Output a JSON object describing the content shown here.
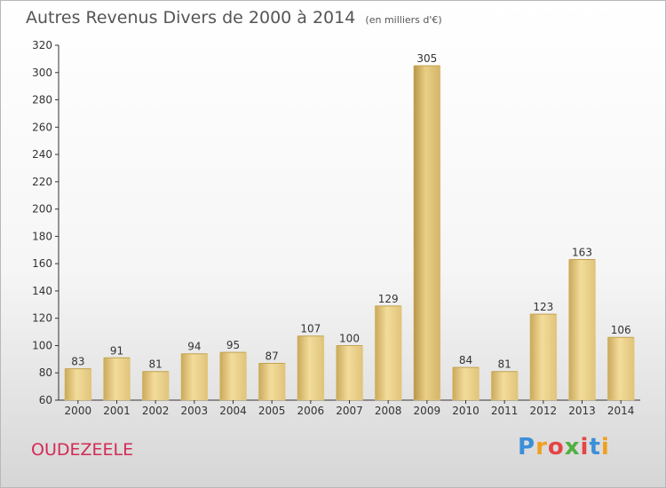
{
  "chart_data": {
    "type": "bar",
    "title": "Autres Revenus Divers de 2000 à 2014",
    "unit_note": "(en milliers d'€)",
    "xlabel": "",
    "ylabel": "",
    "categories": [
      "2000",
      "2001",
      "2002",
      "2003",
      "2004",
      "2005",
      "2006",
      "2007",
      "2008",
      "2009",
      "2010",
      "2011",
      "2012",
      "2013",
      "2014"
    ],
    "values": [
      83,
      91,
      81,
      94,
      95,
      87,
      107,
      100,
      129,
      305,
      84,
      81,
      123,
      163,
      106
    ],
    "ylim": [
      60,
      320
    ],
    "yticks": [
      60,
      80,
      100,
      120,
      140,
      160,
      180,
      200,
      220,
      240,
      260,
      280,
      300,
      320
    ],
    "grid": false,
    "bar_color": "#e8cc86"
  },
  "commune": "OUDEZEELE",
  "logo": {
    "letters": [
      "P",
      "r",
      "o",
      "x",
      "i",
      "t",
      "i"
    ],
    "colors": [
      "#3b8fd9",
      "#f0a020",
      "#e54545",
      "#4fb040",
      "#e54545",
      "#3b8fd9",
      "#f0a020"
    ]
  }
}
